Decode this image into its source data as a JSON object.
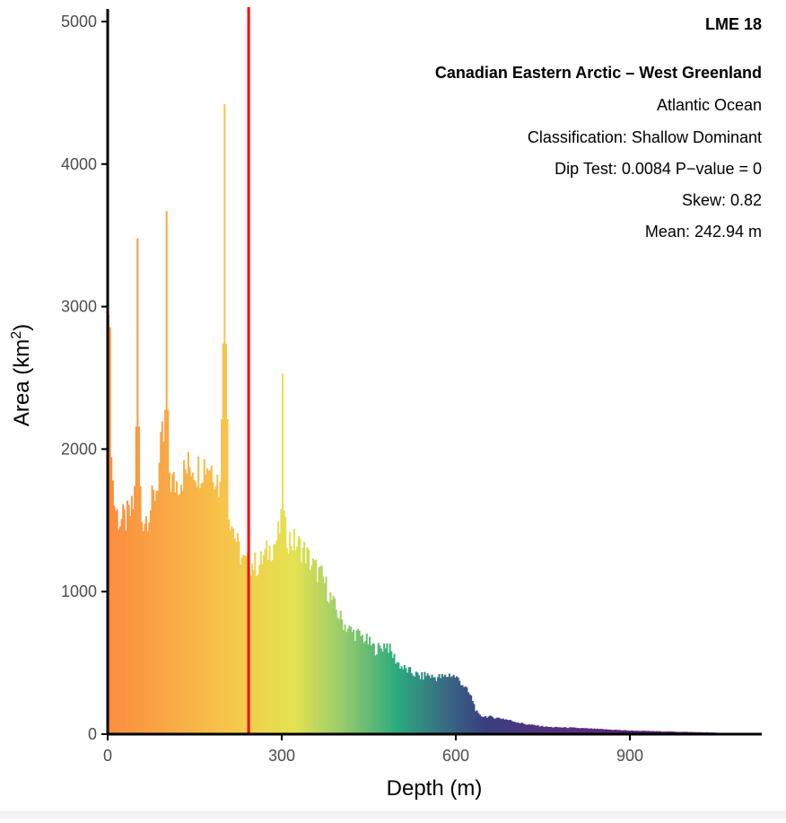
{
  "chart_data": {
    "type": "bar",
    "xlabel": "Depth (m)",
    "ylabel": "Area (km",
    "ylabel_sup": "2",
    "ylabel_close": ")",
    "xlim": [
      0,
      1125
    ],
    "ylim": [
      0,
      5000
    ],
    "xticks": [
      0,
      300,
      600,
      900
    ],
    "yticks": [
      0,
      1000,
      2000,
      3000,
      4000,
      5000
    ],
    "grid": false,
    "mean_line": {
      "value": 242.94,
      "color": "#ff0000"
    },
    "annotations": {
      "lme": "LME 18",
      "name": "Canadian Eastern Arctic – West Greenland",
      "ocean": "Atlantic Ocean",
      "classification": "Classification: Shallow Dominant",
      "dip": "Dip Test: 0.0084 P−value = 0",
      "skew": "Skew: 0.82",
      "mean": "Mean: 242.94 m"
    },
    "color_scale": [
      {
        "depth": 0,
        "color": "#fb8c3f"
      },
      {
        "depth": 200,
        "color": "#f7c34a"
      },
      {
        "depth": 320,
        "color": "#e4e350"
      },
      {
        "depth": 400,
        "color": "#9ccd6a"
      },
      {
        "depth": 500,
        "color": "#2aaa7e"
      },
      {
        "depth": 580,
        "color": "#396c84"
      },
      {
        "depth": 650,
        "color": "#3a3e7e"
      },
      {
        "depth": 800,
        "color": "#5a2d80"
      },
      {
        "depth": 1100,
        "color": "#5b1a6e"
      }
    ],
    "bin_width": 2.5,
    "profile": [
      [
        0,
        2950
      ],
      [
        3,
        2900
      ],
      [
        5,
        2300
      ],
      [
        8,
        1800
      ],
      [
        12,
        1600
      ],
      [
        20,
        1500
      ],
      [
        30,
        1500
      ],
      [
        40,
        1550
      ],
      [
        48,
        1650
      ],
      [
        55,
        1500
      ],
      [
        65,
        1520
      ],
      [
        75,
        1600
      ],
      [
        85,
        1750
      ],
      [
        95,
        2100
      ],
      [
        105,
        1800
      ],
      [
        115,
        1750
      ],
      [
        125,
        1800
      ],
      [
        135,
        1850
      ],
      [
        145,
        1900
      ],
      [
        155,
        1850
      ],
      [
        165,
        1900
      ],
      [
        175,
        1900
      ],
      [
        185,
        1850
      ],
      [
        195,
        1700
      ],
      [
        210,
        1550
      ],
      [
        225,
        1300
      ],
      [
        235,
        1200
      ],
      [
        250,
        1200
      ],
      [
        260,
        1180
      ],
      [
        270,
        1250
      ],
      [
        280,
        1300
      ],
      [
        290,
        1350
      ],
      [
        300,
        1480
      ],
      [
        310,
        1380
      ],
      [
        320,
        1350
      ],
      [
        330,
        1320
      ],
      [
        340,
        1280
      ],
      [
        350,
        1200
      ],
      [
        360,
        1150
      ],
      [
        370,
        1100
      ],
      [
        380,
        1000
      ],
      [
        390,
        900
      ],
      [
        400,
        820
      ],
      [
        410,
        760
      ],
      [
        420,
        720
      ],
      [
        430,
        700
      ],
      [
        440,
        680
      ],
      [
        450,
        640
      ],
      [
        460,
        600
      ],
      [
        470,
        600
      ],
      [
        480,
        640
      ],
      [
        490,
        560
      ],
      [
        500,
        500
      ],
      [
        510,
        460
      ],
      [
        520,
        440
      ],
      [
        530,
        420
      ],
      [
        540,
        400
      ],
      [
        550,
        420
      ],
      [
        560,
        400
      ],
      [
        570,
        400
      ],
      [
        580,
        400
      ],
      [
        590,
        420
      ],
      [
        600,
        400
      ],
      [
        610,
        360
      ],
      [
        620,
        300
      ],
      [
        628,
        250
      ],
      [
        634,
        170
      ],
      [
        640,
        130
      ],
      [
        660,
        120
      ],
      [
        680,
        110
      ],
      [
        700,
        90
      ],
      [
        720,
        70
      ],
      [
        740,
        60
      ],
      [
        760,
        50
      ],
      [
        800,
        45
      ],
      [
        850,
        35
      ],
      [
        900,
        25
      ],
      [
        950,
        20
      ],
      [
        1000,
        15
      ],
      [
        1050,
        10
      ],
      [
        1080,
        6
      ],
      [
        1100,
        3
      ],
      [
        1110,
        0
      ]
    ],
    "spikes": [
      {
        "x": 1.5,
        "y": 2940
      },
      {
        "x": 52,
        "y": 3480
      },
      {
        "x": 101,
        "y": 3670
      },
      {
        "x": 201,
        "y": 4420
      },
      {
        "x": 301,
        "y": 2530
      }
    ]
  }
}
